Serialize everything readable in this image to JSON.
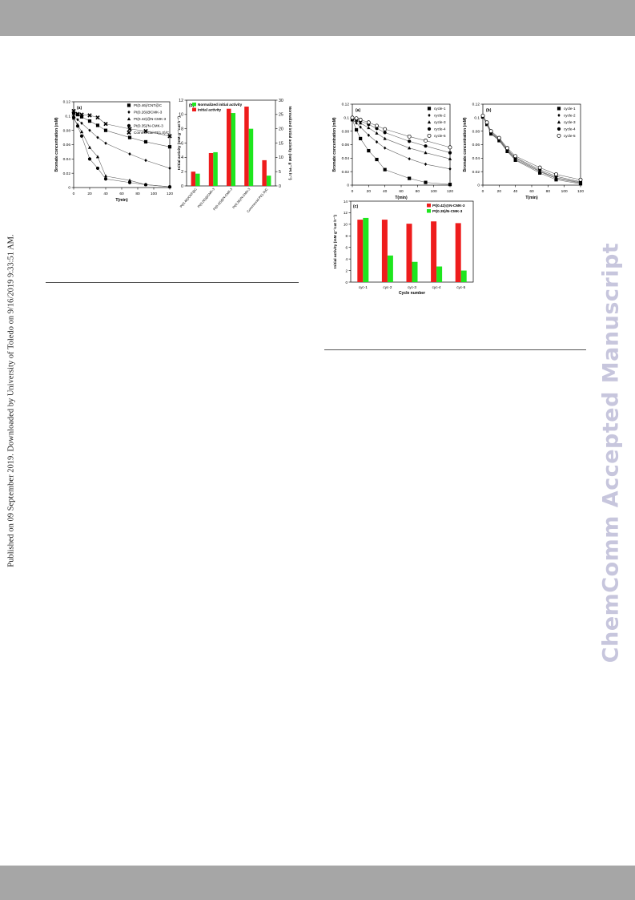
{
  "page": {
    "side_text": "Published on 09 September 2019. Downloaded by University of Toledo on 9/16/2019 9:33:51 AM.",
    "watermark": "ChemComm Accepted Manuscript"
  },
  "colors": {
    "red": "#ee1c1c",
    "green": "#1ee61e",
    "bar": "#a6a6a6",
    "watermark": "#c7c6dd"
  },
  "chart_data": [
    {
      "id": "left-a",
      "type": "scatter",
      "panel_label": "(a)",
      "xlabel": "T(min)",
      "ylabel": "Bromate concentration (mM)",
      "xlim": [
        0,
        120
      ],
      "ylim": [
        0,
        0.12
      ],
      "xticks": [
        "0",
        "20",
        "40",
        "60",
        "80",
        "100",
        "120"
      ],
      "yticks": [
        "0",
        "0.02",
        "0.04",
        "0.06",
        "0.08",
        "0.1",
        "0.12"
      ],
      "legend_position": "top-right",
      "series": [
        {
          "name": "Pt(0.46)/CNT@C",
          "marker": "square",
          "x": [
            0,
            5,
            10,
            20,
            30,
            40,
            70,
            90,
            120
          ],
          "y": [
            0.104,
            0.102,
            0.099,
            0.093,
            0.087,
            0.08,
            0.07,
            0.064,
            0.057
          ]
        },
        {
          "name": "Pt(0.26)@CMK-3",
          "marker": "diamond",
          "x": [
            0,
            5,
            10,
            20,
            30,
            40,
            70,
            90,
            120
          ],
          "y": [
            0.1,
            0.095,
            0.09,
            0.08,
            0.07,
            0.062,
            0.047,
            0.038,
            0.027
          ]
        },
        {
          "name": "Pt(0.42)@N-CMK-3",
          "marker": "triangle",
          "x": [
            0,
            5,
            10,
            20,
            30,
            40,
            70,
            90,
            120
          ],
          "y": [
            0.097,
            0.088,
            0.078,
            0.056,
            0.043,
            0.016,
            0.01,
            0.004,
            0.001
          ]
        },
        {
          "name": "Pt(0.35)/N-CMK-3",
          "marker": "circle",
          "x": [
            0,
            5,
            10,
            20,
            30,
            40,
            70,
            90,
            120
          ],
          "y": [
            0.098,
            0.086,
            0.072,
            0.04,
            0.027,
            0.012,
            0.007,
            0.004,
            0.001
          ]
        },
        {
          "name": "Commercial Pt(1.0)/C",
          "marker": "x",
          "x": [
            0,
            5,
            10,
            20,
            30,
            40,
            70,
            90,
            120
          ],
          "y": [
            0.107,
            0.103,
            0.102,
            0.101,
            0.098,
            0.089,
            0.082,
            0.079,
            0.072
          ]
        }
      ]
    },
    {
      "id": "left-b",
      "type": "bar",
      "panel_label": "(b)",
      "ylabel": "Initial activity (mM g⁻¹cat h⁻¹)",
      "y2label": "Normalized initial activity (mM g⁻¹Pt h⁻¹)",
      "ylim": [
        0,
        12
      ],
      "y2lim": [
        0,
        30
      ],
      "yticks": [
        "0",
        "2",
        "4",
        "6",
        "8",
        "10",
        "12"
      ],
      "y2ticks": [
        "0",
        "5",
        "10",
        "15",
        "20",
        "25",
        "30"
      ],
      "categories": [
        "Pt(0.46)/CNT@C",
        "Pt(0.26)@CMK-3",
        "Pt(0.42)@N-CMK-3",
        "Pt(0.35)/N-CMK-3",
        "Commercial Pt(1.0)/C"
      ],
      "legend_position": "top-left",
      "series": [
        {
          "name": "Initial activity",
          "color": "#ee1c1c",
          "axis": "left",
          "values": [
            2.0,
            4.6,
            10.8,
            11.1,
            3.6
          ]
        },
        {
          "name": "Normalized initial activity",
          "color": "#1ee61e",
          "axis": "right",
          "values": [
            4.3,
            11.8,
            25.5,
            20.0,
            3.6
          ]
        }
      ]
    },
    {
      "id": "right-a",
      "type": "scatter",
      "panel_label": "(a)",
      "xlabel": "T(min)",
      "ylabel": "Bromate concentration (mM)",
      "xlim": [
        0,
        120
      ],
      "ylim": [
        0,
        0.12
      ],
      "xticks": [
        "0",
        "20",
        "40",
        "60",
        "80",
        "100",
        "120"
      ],
      "yticks": [
        "0",
        "0.02",
        "0.04",
        "0.06",
        "0.08",
        "0.1",
        "0.12"
      ],
      "legend_position": "top-right",
      "series": [
        {
          "name": "cycle-1",
          "marker": "square",
          "x": [
            0,
            5,
            10,
            20,
            30,
            40,
            70,
            90,
            120
          ],
          "y": [
            0.097,
            0.082,
            0.069,
            0.051,
            0.038,
            0.023,
            0.01,
            0.004,
            0.001
          ]
        },
        {
          "name": "cycle-2",
          "marker": "diamond",
          "x": [
            0,
            5,
            10,
            20,
            30,
            40,
            70,
            90,
            120
          ],
          "y": [
            0.097,
            0.092,
            0.086,
            0.074,
            0.064,
            0.055,
            0.039,
            0.031,
            0.024
          ]
        },
        {
          "name": "cycle-3",
          "marker": "triangle",
          "x": [
            0,
            5,
            10,
            20,
            30,
            40,
            70,
            90,
            120
          ],
          "y": [
            0.098,
            0.096,
            0.092,
            0.085,
            0.077,
            0.069,
            0.055,
            0.048,
            0.039
          ]
        },
        {
          "name": "cycle-4",
          "marker": "circle",
          "x": [
            0,
            5,
            10,
            20,
            30,
            40,
            70,
            90,
            120
          ],
          "y": [
            0.099,
            0.097,
            0.095,
            0.09,
            0.084,
            0.078,
            0.065,
            0.058,
            0.048
          ]
        },
        {
          "name": "cycle-5",
          "marker": "open-circle",
          "x": [
            0,
            5,
            10,
            20,
            30,
            40,
            70,
            90,
            120
          ],
          "y": [
            0.1,
            0.099,
            0.097,
            0.093,
            0.088,
            0.083,
            0.072,
            0.066,
            0.056
          ]
        }
      ]
    },
    {
      "id": "right-b",
      "type": "scatter",
      "panel_label": "(b)",
      "xlabel": "T(min)",
      "ylabel": "Bromate concentration (mM)",
      "xlim": [
        0,
        120
      ],
      "ylim": [
        0,
        0.12
      ],
      "xticks": [
        "0",
        "20",
        "40",
        "60",
        "80",
        "100",
        "120"
      ],
      "yticks": [
        "0",
        "0.02",
        "0.04",
        "0.06",
        "0.08",
        "0.1",
        "0.12"
      ],
      "legend_position": "top-right",
      "series": [
        {
          "name": "cycle-1",
          "marker": "square",
          "x": [
            0,
            5,
            10,
            20,
            30,
            40,
            70,
            90,
            120
          ],
          "y": [
            0.101,
            0.09,
            0.076,
            0.066,
            0.05,
            0.037,
            0.018,
            0.008,
            0.002
          ]
        },
        {
          "name": "cycle-2",
          "marker": "diamond",
          "x": [
            0,
            5,
            10,
            20,
            30,
            40,
            70,
            90,
            120
          ],
          "y": [
            0.101,
            0.091,
            0.077,
            0.067,
            0.051,
            0.038,
            0.02,
            0.01,
            0.003
          ]
        },
        {
          "name": "cycle-3",
          "marker": "triangle",
          "x": [
            0,
            5,
            10,
            20,
            30,
            40,
            70,
            90,
            120
          ],
          "y": [
            0.102,
            0.091,
            0.078,
            0.068,
            0.052,
            0.04,
            0.021,
            0.011,
            0.004
          ]
        },
        {
          "name": "cycle-4",
          "marker": "circle",
          "x": [
            0,
            5,
            10,
            20,
            30,
            40,
            70,
            90,
            120
          ],
          "y": [
            0.102,
            0.092,
            0.078,
            0.069,
            0.053,
            0.041,
            0.023,
            0.013,
            0.005
          ]
        },
        {
          "name": "cycle-5",
          "marker": "open-circle",
          "x": [
            0,
            5,
            10,
            20,
            30,
            40,
            70,
            90,
            120
          ],
          "y": [
            0.103,
            0.093,
            0.08,
            0.07,
            0.055,
            0.043,
            0.026,
            0.016,
            0.008
          ]
        }
      ]
    },
    {
      "id": "right-c",
      "type": "bar",
      "panel_label": "(c)",
      "xlabel": "Cycle number",
      "ylabel": "Initial activity (mM g⁻¹cat h⁻¹)",
      "ylim": [
        0,
        14
      ],
      "yticks": [
        "0",
        "2",
        "4",
        "6",
        "8",
        "10",
        "12",
        "14"
      ],
      "categories": [
        "cyc-1",
        "cyc-2",
        "cyc-3",
        "cyc-4",
        "cyc-5"
      ],
      "legend_position": "top-right",
      "series": [
        {
          "name": "Pt(0.42)@N-CMK-3",
          "color": "#ee1c1c",
          "values": [
            10.8,
            10.8,
            10.1,
            10.5,
            10.2
          ]
        },
        {
          "name": "Pt(0.35)/N-CMK-3",
          "color": "#1ee61e",
          "values": [
            11.1,
            4.6,
            3.5,
            2.7,
            2.0
          ]
        }
      ]
    }
  ]
}
